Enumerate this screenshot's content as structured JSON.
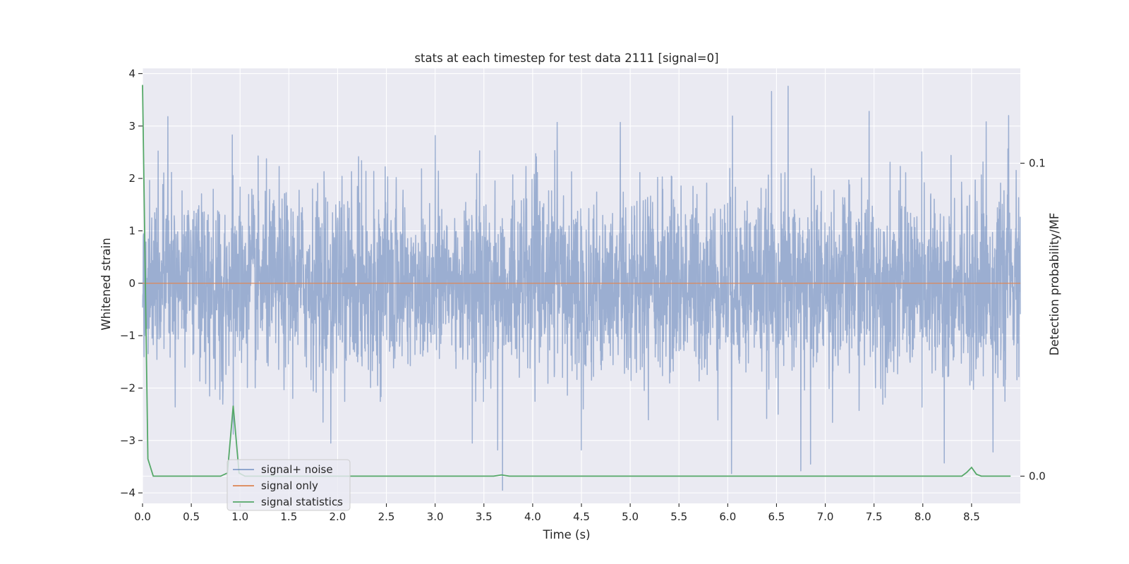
{
  "chart_data": {
    "type": "line",
    "title": "stats at each timestep for test data 2111 [signal=0]",
    "xlabel": "Time (s)",
    "ylabel": "Whitened strain",
    "y2label": "Detection probability/MF",
    "xlim": [
      0,
      9
    ],
    "ylim": [
      -4.2,
      4.1
    ],
    "y2lim": [
      -0.0087,
      0.1303
    ],
    "x_ticks": [
      0.0,
      0.5,
      1.0,
      1.5,
      2.0,
      2.5,
      3.0,
      3.5,
      4.0,
      4.5,
      5.0,
      5.5,
      6.0,
      6.5,
      7.0,
      7.5,
      8.0,
      8.5
    ],
    "x_tick_labels": [
      "0.0",
      "0.5",
      "1.0",
      "1.5",
      "2.0",
      "2.5",
      "3.0",
      "3.5",
      "4.0",
      "4.5",
      "5.0",
      "5.5",
      "6.0",
      "6.5",
      "7.0",
      "7.5",
      "8.0",
      "8.5"
    ],
    "y_ticks": [
      -4,
      -3,
      -2,
      -1,
      0,
      1,
      2,
      3,
      4
    ],
    "y_tick_labels": [
      "−4",
      "−3",
      "−2",
      "−1",
      "0",
      "1",
      "2",
      "3",
      "4"
    ],
    "y2_ticks": [
      0.0,
      0.1
    ],
    "y2_tick_labels": [
      "0.0",
      "0.1"
    ],
    "grid": true,
    "background": "#eaeaf2",
    "legend_position": "lower-left",
    "series": [
      {
        "name": "signal+ noise",
        "axis": "left",
        "color": "#4c72b0",
        "opacity": 0.5,
        "description_of_shape": "dense whitened noise, roughly Gaussian",
        "notable_peaks": [
          {
            "x": 0.26,
            "y": 3.18
          },
          {
            "x": 0.92,
            "y": 2.83
          },
          {
            "x": 1.93,
            "y": 2.86
          },
          {
            "x": 3.0,
            "y": 2.82
          },
          {
            "x": 4.25,
            "y": 3.07
          },
          {
            "x": 4.9,
            "y": 3.07
          },
          {
            "x": 6.05,
            "y": 3.19
          },
          {
            "x": 6.45,
            "y": 3.66
          },
          {
            "x": 6.62,
            "y": 3.76
          },
          {
            "x": 7.45,
            "y": 3.28
          },
          {
            "x": 8.65,
            "y": 3.08
          },
          {
            "x": 8.88,
            "y": 3.2
          }
        ],
        "notable_troughs": [
          {
            "x": 0.93,
            "y": -2.88
          },
          {
            "x": 1.93,
            "y": -3.05
          },
          {
            "x": 3.38,
            "y": -3.05
          },
          {
            "x": 3.64,
            "y": -3.18
          },
          {
            "x": 3.69,
            "y": -3.95
          },
          {
            "x": 4.5,
            "y": -3.18
          },
          {
            "x": 6.04,
            "y": -3.63
          },
          {
            "x": 6.75,
            "y": -3.58
          },
          {
            "x": 6.85,
            "y": -3.45
          },
          {
            "x": 8.22,
            "y": -3.43
          },
          {
            "x": 8.72,
            "y": -3.22
          }
        ]
      },
      {
        "name": "signal only",
        "axis": "left",
        "color": "#dd8452",
        "x": [
          0,
          9
        ],
        "y": [
          0,
          0
        ]
      },
      {
        "name": "signal statistics",
        "axis": "right",
        "color": "#55a868",
        "x": [
          0.0,
          0.055,
          0.11,
          0.8,
          0.87,
          0.93,
          0.99,
          1.05,
          3.6,
          3.68,
          3.76,
          8.4,
          8.45,
          8.5,
          8.55,
          8.6,
          8.9
        ],
        "y": [
          0.125,
          0.0055,
          0.0,
          0.0,
          0.001,
          0.0225,
          0.001,
          0.0,
          0.0,
          0.0004,
          0.0,
          0.0,
          0.0012,
          0.0028,
          0.0006,
          0.0,
          0.0
        ]
      }
    ]
  }
}
